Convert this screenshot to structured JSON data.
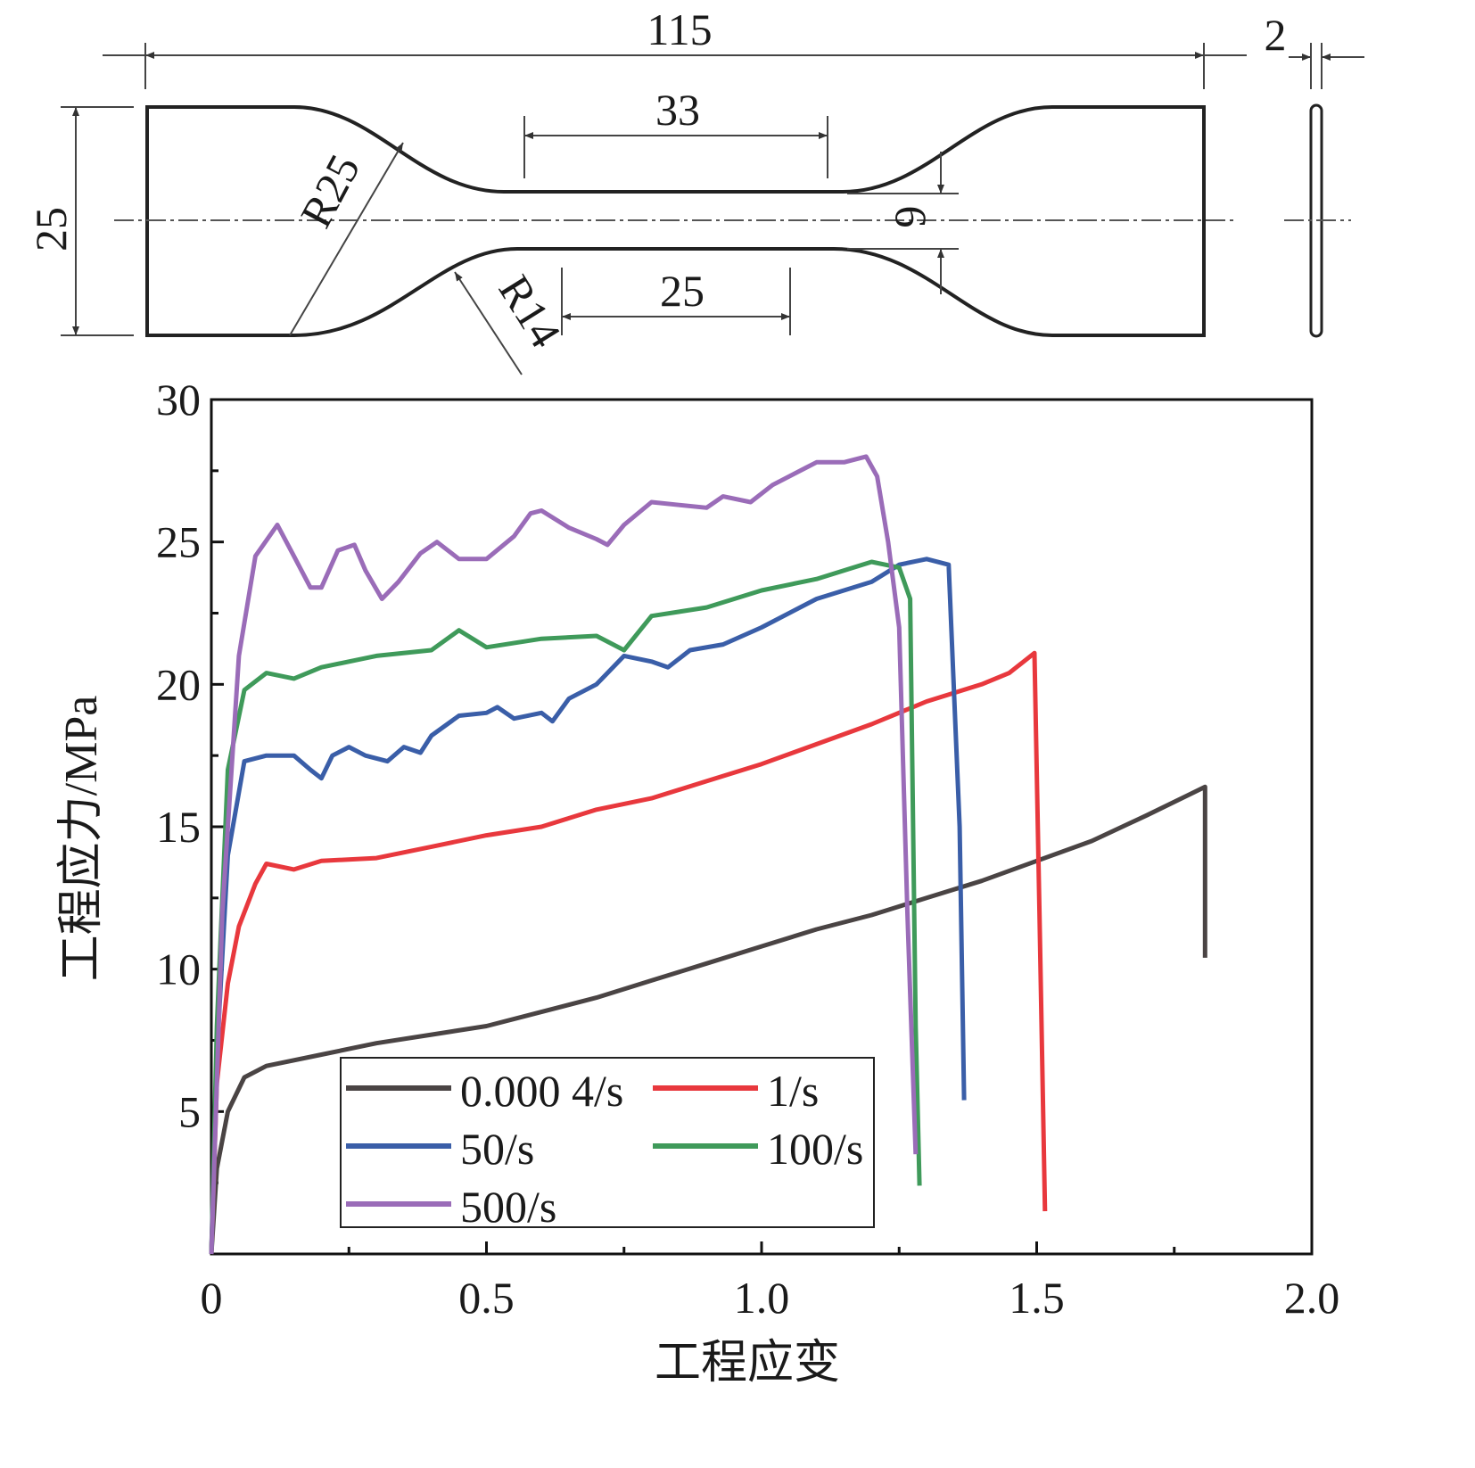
{
  "diagram": {
    "overall_length": "115",
    "thickness": "2",
    "gauge_outer_length": "33",
    "gauge_length": "25",
    "overall_width": "25",
    "gauge_width": "6",
    "radius_large": "R25",
    "radius_small": "R14"
  },
  "chart_data": {
    "type": "line",
    "title": "",
    "xlabel": "工程应变",
    "ylabel": "工程应力/MPa",
    "xlim": [
      0,
      2.0
    ],
    "ylim": [
      0,
      30
    ],
    "xticks": [
      "0",
      "0.5",
      "1.0",
      "1.5",
      "2.0"
    ],
    "xtick_values": [
      0,
      0.5,
      1.0,
      1.5,
      2.0
    ],
    "yticks": [
      "5",
      "10",
      "15",
      "20",
      "25",
      "30"
    ],
    "ytick_values": [
      5,
      10,
      15,
      20,
      25,
      30
    ],
    "grid": false,
    "legend_position": "bottom-left",
    "series": [
      {
        "name": "0.000 4/s",
        "color": "#4a4444",
        "points": [
          [
            0,
            0
          ],
          [
            0.01,
            3
          ],
          [
            0.03,
            5
          ],
          [
            0.06,
            6.2
          ],
          [
            0.1,
            6.6
          ],
          [
            0.2,
            7.0
          ],
          [
            0.3,
            7.4
          ],
          [
            0.4,
            7.7
          ],
          [
            0.5,
            8.0
          ],
          [
            0.6,
            8.5
          ],
          [
            0.7,
            9.0
          ],
          [
            0.8,
            9.6
          ],
          [
            0.9,
            10.2
          ],
          [
            1.0,
            10.8
          ],
          [
            1.1,
            11.4
          ],
          [
            1.2,
            11.9
          ],
          [
            1.3,
            12.5
          ],
          [
            1.4,
            13.1
          ],
          [
            1.5,
            13.8
          ],
          [
            1.6,
            14.5
          ],
          [
            1.7,
            15.4
          ],
          [
            1.806,
            16.4
          ],
          [
            1.806,
            10.4
          ]
        ]
      },
      {
        "name": "1/s",
        "color": "#e8383d",
        "points": [
          [
            0,
            0
          ],
          [
            0.01,
            6
          ],
          [
            0.03,
            9.5
          ],
          [
            0.05,
            11.5
          ],
          [
            0.08,
            13.0
          ],
          [
            0.1,
            13.7
          ],
          [
            0.15,
            13.5
          ],
          [
            0.2,
            13.8
          ],
          [
            0.3,
            13.9
          ],
          [
            0.4,
            14.3
          ],
          [
            0.5,
            14.7
          ],
          [
            0.6,
            15.0
          ],
          [
            0.65,
            15.3
          ],
          [
            0.7,
            15.6
          ],
          [
            0.8,
            16.0
          ],
          [
            0.9,
            16.6
          ],
          [
            1.0,
            17.2
          ],
          [
            1.1,
            17.9
          ],
          [
            1.2,
            18.6
          ],
          [
            1.3,
            19.4
          ],
          [
            1.4,
            20.0
          ],
          [
            1.45,
            20.4
          ],
          [
            1.496,
            21.1
          ],
          [
            1.505,
            12
          ],
          [
            1.515,
            1.5
          ]
        ]
      },
      {
        "name": "50/s",
        "color": "#3a5ea8",
        "points": [
          [
            0,
            0
          ],
          [
            0.01,
            7
          ],
          [
            0.03,
            14
          ],
          [
            0.06,
            17.3
          ],
          [
            0.1,
            17.5
          ],
          [
            0.15,
            17.5
          ],
          [
            0.18,
            17.0
          ],
          [
            0.2,
            16.7
          ],
          [
            0.22,
            17.5
          ],
          [
            0.25,
            17.8
          ],
          [
            0.28,
            17.5
          ],
          [
            0.32,
            17.3
          ],
          [
            0.35,
            17.8
          ],
          [
            0.38,
            17.6
          ],
          [
            0.4,
            18.2
          ],
          [
            0.45,
            18.9
          ],
          [
            0.5,
            19.0
          ],
          [
            0.52,
            19.2
          ],
          [
            0.55,
            18.8
          ],
          [
            0.6,
            19.0
          ],
          [
            0.62,
            18.7
          ],
          [
            0.65,
            19.5
          ],
          [
            0.7,
            20.0
          ],
          [
            0.75,
            21.0
          ],
          [
            0.8,
            20.8
          ],
          [
            0.83,
            20.6
          ],
          [
            0.87,
            21.2
          ],
          [
            0.93,
            21.4
          ],
          [
            1.0,
            22.0
          ],
          [
            1.1,
            23.0
          ],
          [
            1.2,
            23.6
          ],
          [
            1.25,
            24.2
          ],
          [
            1.3,
            24.4
          ],
          [
            1.34,
            24.2
          ],
          [
            1.36,
            15
          ],
          [
            1.368,
            5.4
          ]
        ]
      },
      {
        "name": "100/s",
        "color": "#3f9a5a",
        "points": [
          [
            0,
            0
          ],
          [
            0.01,
            8
          ],
          [
            0.03,
            17
          ],
          [
            0.06,
            19.8
          ],
          [
            0.1,
            20.4
          ],
          [
            0.15,
            20.2
          ],
          [
            0.2,
            20.6
          ],
          [
            0.3,
            21.0
          ],
          [
            0.4,
            21.2
          ],
          [
            0.45,
            21.9
          ],
          [
            0.5,
            21.3
          ],
          [
            0.6,
            21.6
          ],
          [
            0.7,
            21.7
          ],
          [
            0.75,
            21.2
          ],
          [
            0.8,
            22.4
          ],
          [
            0.9,
            22.7
          ],
          [
            1.0,
            23.3
          ],
          [
            1.1,
            23.7
          ],
          [
            1.2,
            24.3
          ],
          [
            1.25,
            24.1
          ],
          [
            1.27,
            23
          ],
          [
            1.28,
            8
          ],
          [
            1.287,
            2.4
          ]
        ]
      },
      {
        "name": "500/s",
        "color": "#9a6cb8",
        "points": [
          [
            0,
            0
          ],
          [
            0.02,
            12
          ],
          [
            0.05,
            21
          ],
          [
            0.08,
            24.5
          ],
          [
            0.12,
            25.6
          ],
          [
            0.15,
            24.5
          ],
          [
            0.18,
            23.4
          ],
          [
            0.2,
            23.4
          ],
          [
            0.23,
            24.7
          ],
          [
            0.26,
            24.9
          ],
          [
            0.28,
            24.0
          ],
          [
            0.31,
            23.0
          ],
          [
            0.34,
            23.6
          ],
          [
            0.38,
            24.6
          ],
          [
            0.41,
            25.0
          ],
          [
            0.45,
            24.4
          ],
          [
            0.5,
            24.4
          ],
          [
            0.55,
            25.2
          ],
          [
            0.58,
            26.0
          ],
          [
            0.6,
            26.1
          ],
          [
            0.65,
            25.5
          ],
          [
            0.7,
            25.1
          ],
          [
            0.72,
            24.9
          ],
          [
            0.75,
            25.6
          ],
          [
            0.8,
            26.4
          ],
          [
            0.85,
            26.3
          ],
          [
            0.9,
            26.2
          ],
          [
            0.93,
            26.6
          ],
          [
            0.98,
            26.4
          ],
          [
            1.02,
            27.0
          ],
          [
            1.08,
            27.6
          ],
          [
            1.1,
            27.8
          ],
          [
            1.15,
            27.8
          ],
          [
            1.19,
            28.0
          ],
          [
            1.21,
            27.3
          ],
          [
            1.23,
            25
          ],
          [
            1.25,
            22
          ],
          [
            1.265,
            12
          ],
          [
            1.28,
            3.5
          ]
        ]
      }
    ]
  }
}
